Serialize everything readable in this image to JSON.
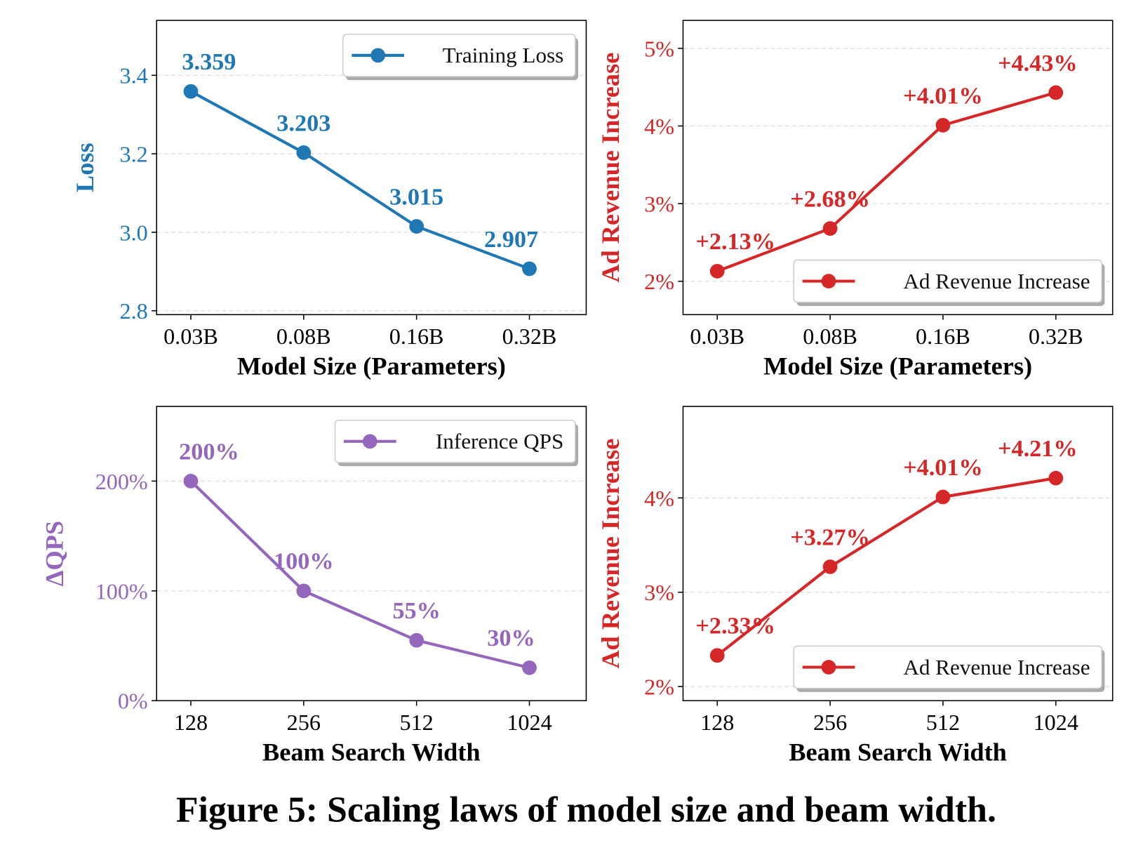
{
  "caption": "Figure 5: Scaling laws of model size and beam width.",
  "chart_data": [
    {
      "type": "line",
      "xlabel": "Model Size (Parameters)",
      "ylabel": "Loss",
      "categories": [
        "0.03B",
        "0.08B",
        "0.16B",
        "0.32B"
      ],
      "yticks": [
        2.8,
        3.0,
        3.2,
        3.4
      ],
      "ytick_labels": [
        "2.8",
        "3.0",
        "3.2",
        "3.4"
      ],
      "ylim": [
        2.79,
        3.54
      ],
      "grid": true,
      "legend": "top-right",
      "color": "#1f77b4",
      "series": [
        {
          "name": "Training Loss",
          "values": [
            3.359,
            3.203,
            3.015,
            2.907
          ]
        }
      ],
      "data_labels": [
        "3.359",
        "3.203",
        "3.015",
        "2.907"
      ]
    },
    {
      "type": "line",
      "xlabel": "Model Size (Parameters)",
      "ylabel": "Ad Revenue Increase",
      "categories": [
        "0.03B",
        "0.08B",
        "0.16B",
        "0.32B"
      ],
      "yticks": [
        2,
        3,
        4,
        5
      ],
      "ytick_labels": [
        "2%",
        "3%",
        "4%",
        "5%"
      ],
      "ylim": [
        1.57,
        5.36
      ],
      "grid": true,
      "legend": "lower-right",
      "color": "#d62728",
      "series": [
        {
          "name": "Ad Revenue Increase",
          "values": [
            2.13,
            2.68,
            4.01,
            4.43
          ]
        }
      ],
      "data_labels": [
        "+2.13%",
        "+2.68%",
        "+4.01%",
        "+4.43%"
      ]
    },
    {
      "type": "line",
      "xlabel": "Beam Search Width",
      "ylabel": "ΔQPS",
      "categories": [
        "128",
        "256",
        "512",
        "1024"
      ],
      "yticks": [
        0,
        100,
        200
      ],
      "ytick_labels": [
        "0%",
        "100%",
        "200%"
      ],
      "ylim": [
        0,
        268
      ],
      "grid": true,
      "legend": "top-right",
      "color": "#9467bd",
      "series": [
        {
          "name": "Inference QPS",
          "values": [
            200,
            100,
            55,
            30
          ]
        }
      ],
      "data_labels": [
        "200%",
        "100%",
        "55%",
        "30%"
      ]
    },
    {
      "type": "line",
      "xlabel": "Beam Search Width",
      "ylabel": "Ad Revenue Increase",
      "categories": [
        "128",
        "256",
        "512",
        "1024"
      ],
      "yticks": [
        2,
        3,
        4
      ],
      "ytick_labels": [
        "2%",
        "3%",
        "4%"
      ],
      "ylim": [
        1.85,
        4.97
      ],
      "grid": true,
      "legend": "lower-right",
      "color": "#d62728",
      "series": [
        {
          "name": "Ad Revenue Increase",
          "values": [
            2.33,
            3.27,
            4.01,
            4.21
          ]
        }
      ],
      "data_labels": [
        "+2.33%",
        "+3.27%",
        "+4.01%",
        "+4.21%"
      ]
    }
  ]
}
